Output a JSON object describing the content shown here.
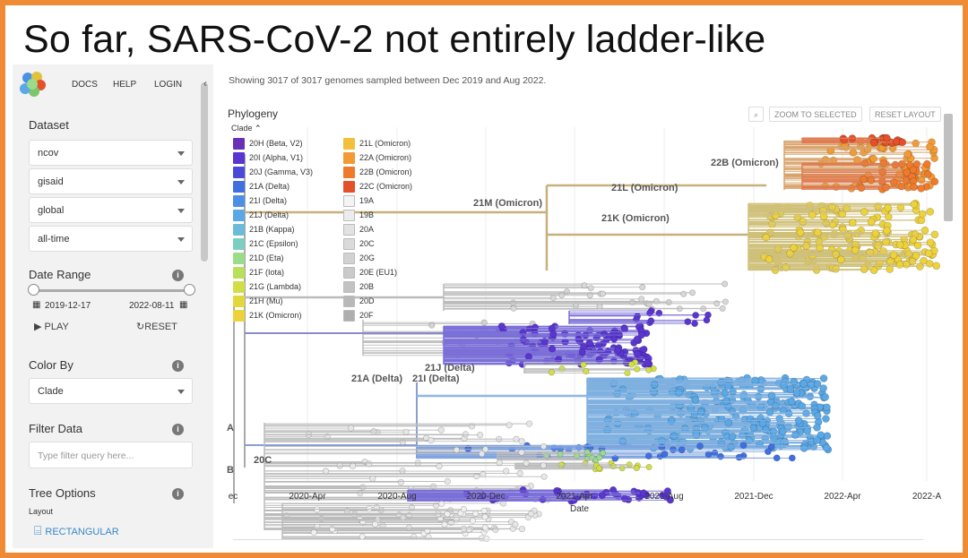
{
  "slide": {
    "title": "So far, SARS-CoV-2 not entirely ladder-like"
  },
  "colors": {
    "frame": "#ef8a35",
    "accent": "#3a87c8"
  },
  "sidebar": {
    "nav": [
      "DOCS",
      "HELP",
      "LOGIN"
    ],
    "dataset": {
      "title": "Dataset",
      "selects": [
        "ncov",
        "gisaid",
        "global",
        "all-time"
      ]
    },
    "date_range": {
      "title": "Date Range",
      "start": "2019-12-17",
      "end": "2022-08-11",
      "play": "PLAY",
      "reset": "RESET"
    },
    "color_by": {
      "title": "Color By",
      "value": "Clade"
    },
    "filter": {
      "title": "Filter Data",
      "placeholder": "Type filter query here..."
    },
    "tree_options": {
      "title": "Tree Options",
      "layout_label": "Layout",
      "layout_value": "RECTANGULAR"
    }
  },
  "main": {
    "showing": "Showing 3017 of 3017 genomes sampled between Dec 2019 and Aug 2022.",
    "panel_title": "Phylogeny",
    "legend_toggle": "Clade",
    "buttons": {
      "zoom_icon": "magnifier-icon",
      "zoom": "ZOOM TO SELECTED",
      "reset": "RESET LAYOUT"
    },
    "legend": [
      {
        "label": "20H (Beta, V2)",
        "color": "#6a2fb8"
      },
      {
        "label": "20I (Alpha, V1)",
        "color": "#5a35d0"
      },
      {
        "label": "20J (Gamma, V3)",
        "color": "#4b4ad8"
      },
      {
        "label": "21A (Delta)",
        "color": "#3f6fe0"
      },
      {
        "label": "21I (Delta)",
        "color": "#4c8fe6"
      },
      {
        "label": "21J (Delta)",
        "color": "#5aa8e6"
      },
      {
        "label": "21B (Kappa)",
        "color": "#6cbbd8"
      },
      {
        "label": "21C (Epsilon)",
        "color": "#7ccfc0"
      },
      {
        "label": "21D (Eta)",
        "color": "#9bdc8a"
      },
      {
        "label": "21F (Iota)",
        "color": "#b8e05a"
      },
      {
        "label": "21G (Lambda)",
        "color": "#d1df45"
      },
      {
        "label": "21H (Mu)",
        "color": "#e3d83b"
      },
      {
        "label": "21K (Omicron)",
        "color": "#eed23b"
      },
      {
        "label": "21L (Omicron)",
        "color": "#f2c03a"
      },
      {
        "label": "22A (Omicron)",
        "color": "#f29a33"
      },
      {
        "label": "22B (Omicron)",
        "color": "#ef7a2c"
      },
      {
        "label": "22C (Omicron)",
        "color": "#e4502a"
      },
      {
        "label": "19A",
        "color": "#f4f4f4"
      },
      {
        "label": "19B",
        "color": "#ececec"
      },
      {
        "label": "20A",
        "color": "#e2e2e2"
      },
      {
        "label": "20C",
        "color": "#dadada"
      },
      {
        "label": "20G",
        "color": "#d2d2d2"
      },
      {
        "label": "20E (EU1)",
        "color": "#cacaca"
      },
      {
        "label": "20B",
        "color": "#c2c2c2"
      },
      {
        "label": "20D",
        "color": "#b8b8b8"
      },
      {
        "label": "20F",
        "color": "#aeaeae"
      }
    ],
    "tree_labels": {
      "l22b": "22B (Omicron)",
      "l21l": "21L (Omicron)",
      "l21m": "21M (Omicron)",
      "l21k": "21K (Omicron)",
      "l21j": "21J (Delta)",
      "l21a": "21A (Delta)",
      "l21i": "21I (Delta)",
      "l20c": "20C",
      "lA": "A",
      "lB": "B"
    },
    "axis": {
      "title": "Date",
      "ticks": [
        "ec",
        "2020-Apr",
        "2020-Aug",
        "2020-Dec",
        "2021-Apr",
        "2021-Aug",
        "2021-Dec",
        "2022-Apr",
        "2022-A"
      ]
    }
  }
}
